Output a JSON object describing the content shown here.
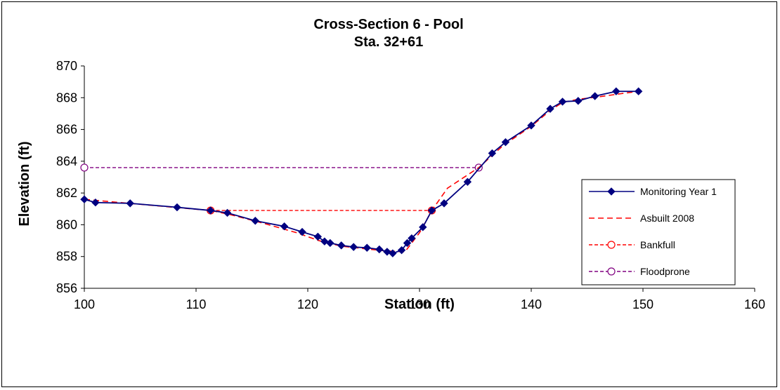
{
  "chart_data": {
    "type": "line",
    "title": "Cross-Section  6 - Pool",
    "subtitle": "Sta. 32+61",
    "xlabel": "Station (ft)",
    "ylabel": "Elevation (ft)",
    "xlim": [
      100,
      160
    ],
    "ylim": [
      856,
      870
    ],
    "xticks": [
      "100",
      "110",
      "120",
      "130",
      "140",
      "150",
      "160"
    ],
    "yticks": [
      "856",
      "858",
      "860",
      "862",
      "864",
      "866",
      "868",
      "870"
    ],
    "grid": false,
    "legend_position": "right",
    "series": [
      {
        "name": "Monitoring Year 1",
        "color": "#000080",
        "style": "solid",
        "marker": "diamond",
        "x": [
          100,
          101,
          104.1,
          108.3,
          111.3,
          112.8,
          115.3,
          117.9,
          119.5,
          120.9,
          121.5,
          122,
          123,
          124.1,
          125.3,
          126.4,
          127.1,
          127.6,
          128.4,
          128.9,
          129.3,
          130.3,
          131.1,
          132.2,
          134.3,
          136.5,
          137.7,
          140,
          141.7,
          142.8,
          144.2,
          145.7,
          147.6,
          149.6
        ],
        "y": [
          861.6,
          861.4,
          861.35,
          861.1,
          860.9,
          860.75,
          860.25,
          859.9,
          859.55,
          859.25,
          858.95,
          858.85,
          858.7,
          858.6,
          858.55,
          858.45,
          858.3,
          858.2,
          858.4,
          858.85,
          859.15,
          859.85,
          860.9,
          861.35,
          862.7,
          864.5,
          865.2,
          866.25,
          867.3,
          867.75,
          867.8,
          868.1,
          868.4,
          868.4
        ]
      },
      {
        "name": "Asbuilt 2008",
        "color": "#ff0000",
        "style": "dashed",
        "marker": "none",
        "x": [
          100,
          104,
          108,
          111.3,
          113,
          116,
          119,
          121,
          123,
          125,
          127,
          128.7,
          130,
          131.1,
          132.5,
          135.3,
          137.5,
          140,
          141.7,
          142.8,
          144.2,
          146,
          148,
          149.6
        ],
        "y": [
          861.6,
          861.35,
          861.1,
          860.9,
          860.65,
          860.1,
          859.5,
          859,
          858.65,
          858.5,
          858.35,
          858.3,
          859.5,
          860.9,
          862.3,
          863.6,
          865,
          866.2,
          867.2,
          867.7,
          867.9,
          868.05,
          868.25,
          868.4
        ]
      },
      {
        "name": "Bankfull",
        "color": "#ff0000",
        "style": "dashed",
        "marker": "open-circle",
        "x": [
          111.3,
          131.1
        ],
        "y": [
          860.9,
          860.9
        ]
      },
      {
        "name": "Floodprone",
        "color": "#800080",
        "style": "dashed",
        "marker": "open-circle",
        "x": [
          100,
          135.3
        ],
        "y": [
          863.6,
          863.6
        ]
      }
    ]
  }
}
